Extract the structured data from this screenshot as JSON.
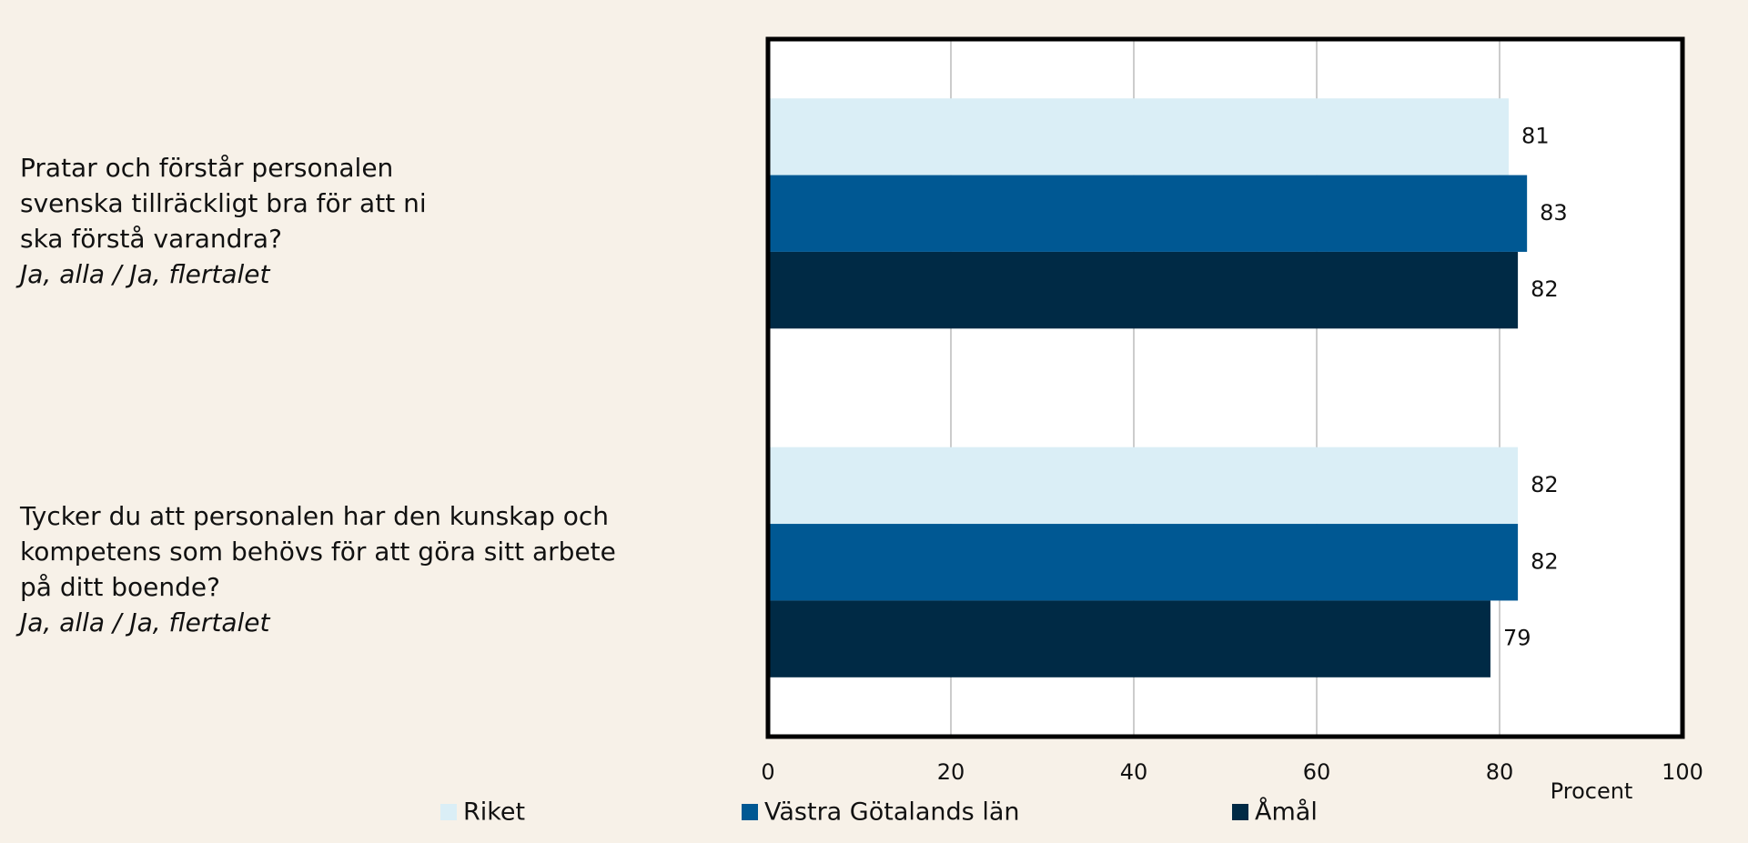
{
  "chart_data": {
    "type": "barh",
    "categories": [
      "Pratar och förstår personalen svenska tillräckligt bra för att ni ska förstå varandra?",
      "Tycker du att personalen har den kunskap och kompetens som behövs för att göra sitt arbete på ditt boende?"
    ],
    "category_notes": [
      "Ja, alla / Ja, flertalet",
      "Ja, alla / Ja, flertalet"
    ],
    "series": [
      {
        "name": "Riket",
        "color": "#daeef6",
        "values": [
          81,
          82
        ]
      },
      {
        "name": "Västra Götalands län",
        "color": "#005893",
        "values": [
          83,
          82
        ]
      },
      {
        "name": "Åmål",
        "color": "#002a45",
        "values": [
          82,
          79
        ]
      }
    ],
    "xlabel": "Procent",
    "xlim": [
      0,
      100
    ],
    "xticks": [
      0,
      20,
      40,
      60,
      80,
      100
    ],
    "grid": true
  }
}
